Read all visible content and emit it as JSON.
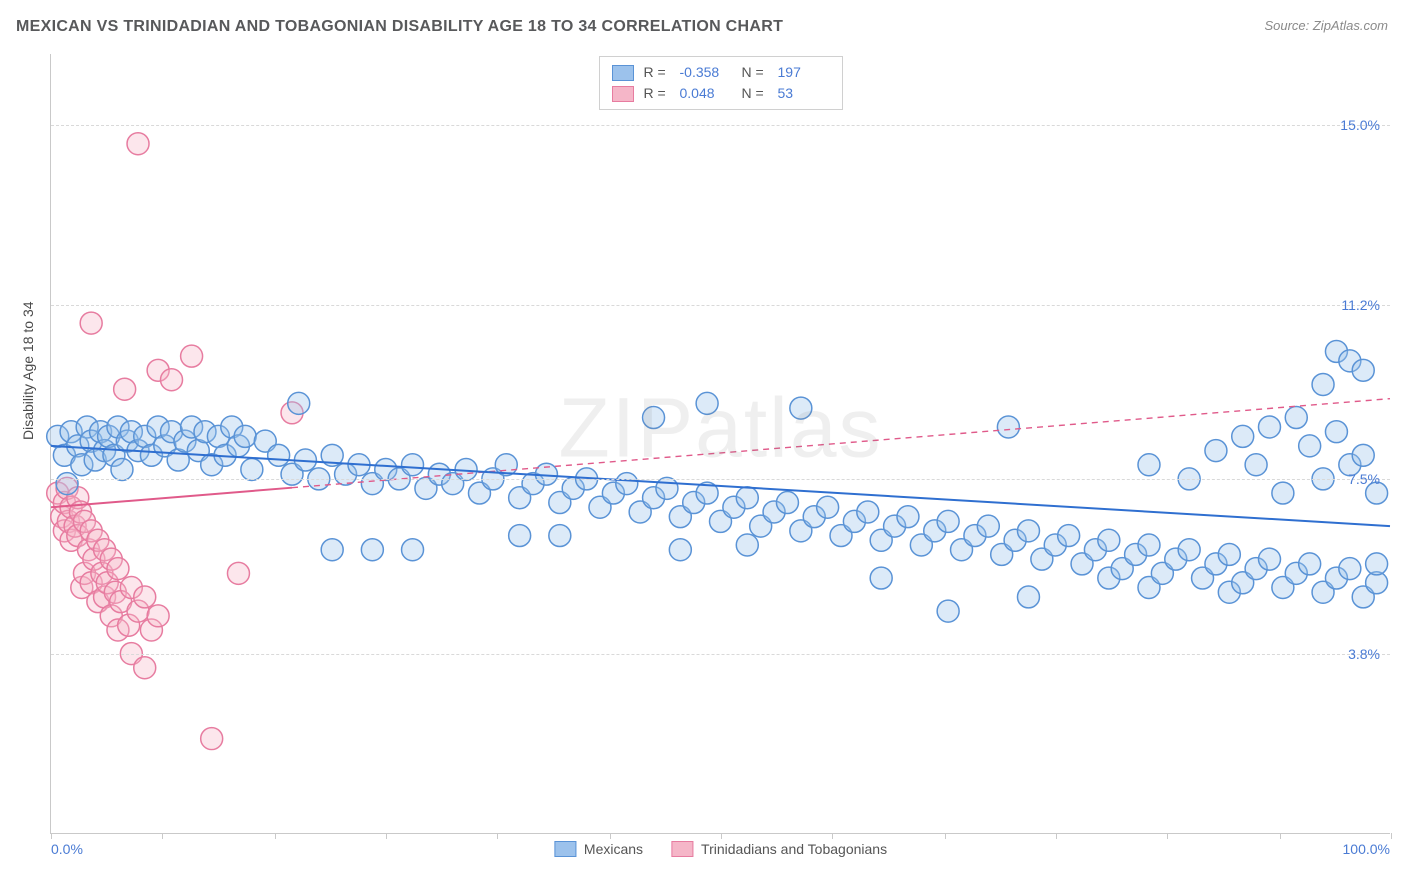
{
  "title": "MEXICAN VS TRINIDADIAN AND TOBAGONIAN DISABILITY AGE 18 TO 34 CORRELATION CHART",
  "source": "Source: ZipAtlas.com",
  "watermark": "ZIPatlas",
  "ylabel": "Disability Age 18 to 34",
  "x_axis": {
    "min_label": "0.0%",
    "max_label": "100.0%",
    "xlim": [
      0,
      100
    ],
    "tick_positions": [
      0,
      8.3,
      16.7,
      25,
      33.3,
      41.7,
      50,
      58.3,
      66.7,
      75,
      83.3,
      91.7,
      100
    ],
    "label_color": "#4a7bd4",
    "fontsize": 14
  },
  "y_axis": {
    "ylim": [
      0,
      16.5
    ],
    "gridlines": [
      {
        "value": 15.0,
        "label": "15.0%"
      },
      {
        "value": 11.2,
        "label": "11.2%"
      },
      {
        "value": 7.5,
        "label": "7.5%"
      },
      {
        "value": 3.8,
        "label": "3.8%"
      }
    ],
    "label_color": "#4a7bd4",
    "grid_color": "#d9d9d9",
    "fontsize": 14
  },
  "chart": {
    "type": "scatter",
    "background_color": "#ffffff",
    "axis_color": "#c9c9c9",
    "marker_radius": 11,
    "marker_stroke_width": 1.5,
    "marker_fill_opacity": 0.35,
    "trend_line_width": 2
  },
  "series": [
    {
      "id": "mexicans",
      "label": "Mexicans",
      "R": "-0.358",
      "N": "197",
      "color_fill": "#9cc2ec",
      "color_stroke": "#5a93d6",
      "line_color": "#2f6fd0",
      "trend": {
        "x1": 0,
        "y1": 8.2,
        "x2": 100,
        "y2": 6.5,
        "solid_until": 100
      },
      "points": [
        [
          0.5,
          8.4
        ],
        [
          1,
          8.0
        ],
        [
          1.2,
          7.4
        ],
        [
          1.5,
          8.5
        ],
        [
          2,
          8.2
        ],
        [
          2.3,
          7.8
        ],
        [
          2.7,
          8.6
        ],
        [
          3,
          8.3
        ],
        [
          3.3,
          7.9
        ],
        [
          3.7,
          8.5
        ],
        [
          4,
          8.1
        ],
        [
          4.3,
          8.4
        ],
        [
          4.7,
          8.0
        ],
        [
          5,
          8.6
        ],
        [
          5.3,
          7.7
        ],
        [
          5.7,
          8.3
        ],
        [
          6,
          8.5
        ],
        [
          6.5,
          8.1
        ],
        [
          7,
          8.4
        ],
        [
          7.5,
          8.0
        ],
        [
          8,
          8.6
        ],
        [
          8.5,
          8.2
        ],
        [
          9,
          8.5
        ],
        [
          9.5,
          7.9
        ],
        [
          10,
          8.3
        ],
        [
          10.5,
          8.6
        ],
        [
          11,
          8.1
        ],
        [
          11.5,
          8.5
        ],
        [
          12,
          7.8
        ],
        [
          12.5,
          8.4
        ],
        [
          13,
          8.0
        ],
        [
          13.5,
          8.6
        ],
        [
          14,
          8.2
        ],
        [
          14.5,
          8.4
        ],
        [
          15,
          7.7
        ],
        [
          16,
          8.3
        ],
        [
          17,
          8.0
        ],
        [
          18,
          7.6
        ],
        [
          18.5,
          9.1
        ],
        [
          19,
          7.9
        ],
        [
          20,
          7.5
        ],
        [
          21,
          8.0
        ],
        [
          21,
          6.0
        ],
        [
          22,
          7.6
        ],
        [
          23,
          7.8
        ],
        [
          24,
          6.0
        ],
        [
          24,
          7.4
        ],
        [
          25,
          7.7
        ],
        [
          26,
          7.5
        ],
        [
          27,
          7.8
        ],
        [
          27,
          6.0
        ],
        [
          28,
          7.3
        ],
        [
          29,
          7.6
        ],
        [
          30,
          7.4
        ],
        [
          31,
          7.7
        ],
        [
          32,
          7.2
        ],
        [
          33,
          7.5
        ],
        [
          34,
          7.8
        ],
        [
          35,
          7.1
        ],
        [
          35,
          6.3
        ],
        [
          36,
          7.4
        ],
        [
          37,
          7.6
        ],
        [
          38,
          7.0
        ],
        [
          38,
          6.3
        ],
        [
          39,
          7.3
        ],
        [
          40,
          7.5
        ],
        [
          41,
          6.9
        ],
        [
          42,
          7.2
        ],
        [
          43,
          7.4
        ],
        [
          44,
          6.8
        ],
        [
          45,
          7.1
        ],
        [
          45,
          8.8
        ],
        [
          46,
          7.3
        ],
        [
          47,
          6.7
        ],
        [
          47,
          6.0
        ],
        [
          48,
          7.0
        ],
        [
          49,
          7.2
        ],
        [
          49,
          9.1
        ],
        [
          50,
          6.6
        ],
        [
          51,
          6.9
        ],
        [
          52,
          7.1
        ],
        [
          52,
          6.1
        ],
        [
          53,
          6.5
        ],
        [
          54,
          6.8
        ],
        [
          55,
          7.0
        ],
        [
          56,
          6.4
        ],
        [
          56,
          9.0
        ],
        [
          57,
          6.7
        ],
        [
          58,
          6.9
        ],
        [
          59,
          6.3
        ],
        [
          60,
          6.6
        ],
        [
          61,
          6.8
        ],
        [
          62,
          6.2
        ],
        [
          62,
          5.4
        ],
        [
          63,
          6.5
        ],
        [
          64,
          6.7
        ],
        [
          65,
          6.1
        ],
        [
          66,
          6.4
        ],
        [
          67,
          6.6
        ],
        [
          67,
          4.7
        ],
        [
          68,
          6.0
        ],
        [
          69,
          6.3
        ],
        [
          70,
          6.5
        ],
        [
          71,
          5.9
        ],
        [
          71.5,
          8.6
        ],
        [
          72,
          6.2
        ],
        [
          73,
          6.4
        ],
        [
          73,
          5.0
        ],
        [
          74,
          5.8
        ],
        [
          75,
          6.1
        ],
        [
          76,
          6.3
        ],
        [
          77,
          5.7
        ],
        [
          78,
          6.0
        ],
        [
          79,
          6.2
        ],
        [
          79,
          5.4
        ],
        [
          80,
          5.6
        ],
        [
          81,
          5.9
        ],
        [
          82,
          6.1
        ],
        [
          82,
          7.8
        ],
        [
          82,
          5.2
        ],
        [
          83,
          5.5
        ],
        [
          84,
          5.8
        ],
        [
          85,
          6.0
        ],
        [
          85,
          7.5
        ],
        [
          86,
          5.4
        ],
        [
          87,
          5.7
        ],
        [
          87,
          8.1
        ],
        [
          88,
          5.9
        ],
        [
          88,
          5.1
        ],
        [
          89,
          5.3
        ],
        [
          89,
          8.4
        ],
        [
          90,
          5.6
        ],
        [
          90,
          7.8
        ],
        [
          91,
          5.8
        ],
        [
          91,
          8.6
        ],
        [
          92,
          5.2
        ],
        [
          92,
          7.2
        ],
        [
          93,
          5.5
        ],
        [
          93,
          8.8
        ],
        [
          94,
          5.7
        ],
        [
          94,
          8.2
        ],
        [
          95,
          5.1
        ],
        [
          95,
          7.5
        ],
        [
          95,
          9.5
        ],
        [
          96,
          5.4
        ],
        [
          96,
          8.5
        ],
        [
          96,
          10.2
        ],
        [
          97,
          5.6
        ],
        [
          97,
          7.8
        ],
        [
          97,
          10.0
        ],
        [
          98,
          5.0
        ],
        [
          98,
          8.0
        ],
        [
          98,
          9.8
        ],
        [
          99,
          5.3
        ],
        [
          99,
          7.2
        ],
        [
          99,
          5.7
        ]
      ]
    },
    {
      "id": "trinidadians",
      "label": "Trinidadians and Tobagonians",
      "R": "0.048",
      "N": "53",
      "color_fill": "#f5b6c8",
      "color_stroke": "#e77ca0",
      "line_color": "#e05a8a",
      "trend": {
        "x1": 0,
        "y1": 6.9,
        "x2": 100,
        "y2": 9.2,
        "solid_until": 18
      },
      "points": [
        [
          0.5,
          7.2
        ],
        [
          0.8,
          6.7
        ],
        [
          1,
          7.0
        ],
        [
          1,
          6.4
        ],
        [
          1.2,
          7.3
        ],
        [
          1.3,
          6.6
        ],
        [
          1.5,
          6.9
        ],
        [
          1.5,
          6.2
        ],
        [
          1.8,
          6.5
        ],
        [
          2,
          7.1
        ],
        [
          2,
          6.3
        ],
        [
          2.2,
          6.8
        ],
        [
          2.3,
          5.2
        ],
        [
          2.5,
          6.6
        ],
        [
          2.5,
          5.5
        ],
        [
          2.8,
          6.0
        ],
        [
          3,
          6.4
        ],
        [
          3,
          5.3
        ],
        [
          3,
          10.8
        ],
        [
          3.2,
          5.8
        ],
        [
          3.5,
          6.2
        ],
        [
          3.5,
          4.9
        ],
        [
          3.8,
          5.5
        ],
        [
          4,
          6.0
        ],
        [
          4,
          5.0
        ],
        [
          4.2,
          5.3
        ],
        [
          4.5,
          5.8
        ],
        [
          4.5,
          4.6
        ],
        [
          4.8,
          5.1
        ],
        [
          5,
          5.6
        ],
        [
          5,
          4.3
        ],
        [
          5.2,
          4.9
        ],
        [
          5.5,
          9.4
        ],
        [
          5.8,
          4.4
        ],
        [
          6,
          5.2
        ],
        [
          6,
          3.8
        ],
        [
          6.5,
          4.7
        ],
        [
          6.5,
          14.6
        ],
        [
          7,
          5.0
        ],
        [
          7,
          3.5
        ],
        [
          7.5,
          4.3
        ],
        [
          8,
          9.8
        ],
        [
          8,
          4.6
        ],
        [
          9,
          9.6
        ],
        [
          10.5,
          10.1
        ],
        [
          12,
          2.0
        ],
        [
          14,
          5.5
        ],
        [
          18,
          8.9
        ]
      ]
    }
  ]
}
